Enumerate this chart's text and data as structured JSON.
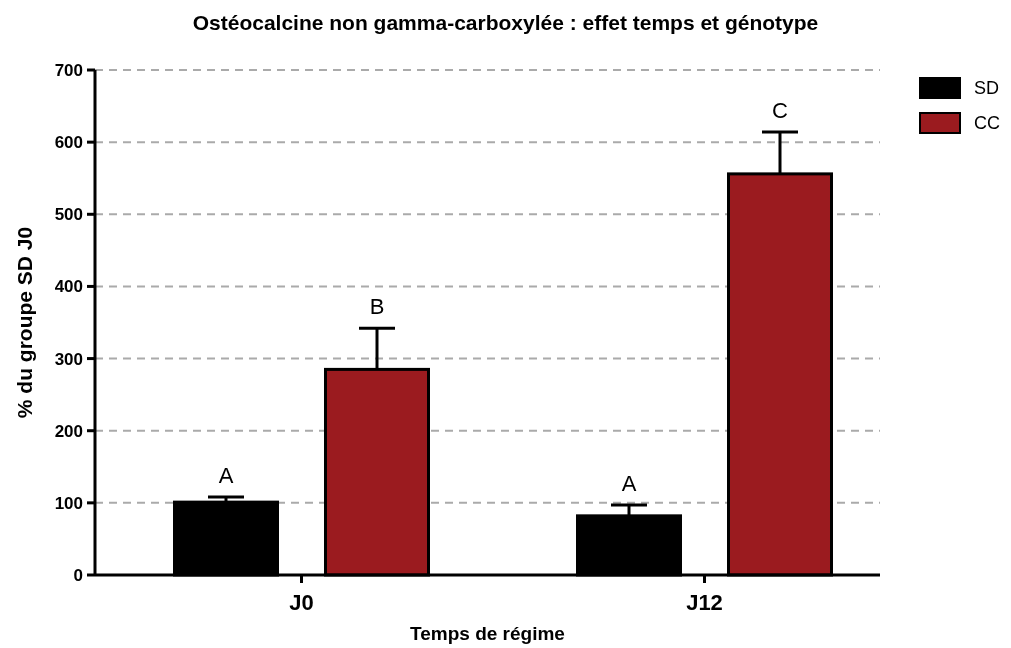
{
  "chart_data": {
    "type": "bar",
    "title": "Ostéocalcine non gamma-carboxylée : effet temps et génotype",
    "xlabel": "Temps de régime",
    "ylabel": "% du groupe SD J0",
    "categories": [
      "J0",
      "J12"
    ],
    "series": [
      {
        "name": "SD",
        "color": "#000000",
        "values": [
          101,
          82
        ],
        "errors": [
          7,
          15
        ]
      },
      {
        "name": "CC",
        "color": "#9b1b1f",
        "values": [
          285,
          556
        ],
        "errors": [
          57,
          58
        ]
      }
    ],
    "ylim": [
      0,
      700
    ],
    "yticks": [
      0,
      100,
      200,
      300,
      400,
      500,
      600,
      700
    ],
    "grid": "y",
    "legend": "top right",
    "annotations": [
      "A",
      "B",
      "A",
      "C"
    ]
  }
}
